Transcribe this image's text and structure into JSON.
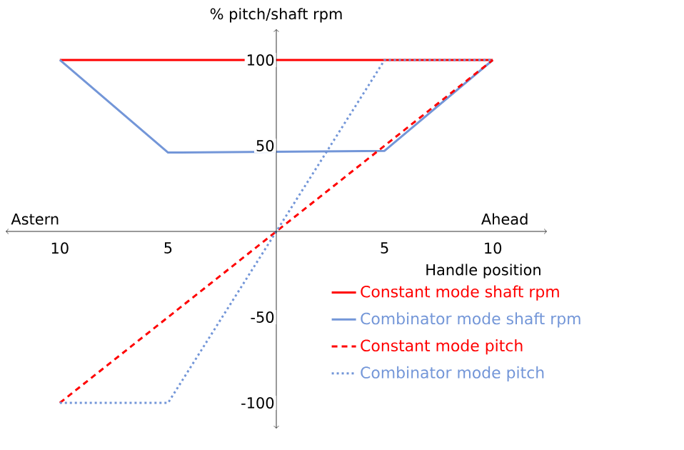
{
  "chart_data": {
    "type": "line",
    "xlabel": "Handle position",
    "ylabel": "% pitch/shaft rpm",
    "annotations": [
      "Astern",
      "Ahead"
    ],
    "xlim": [
      -12.5,
      12.5
    ],
    "ylim": [
      -115,
      118
    ],
    "xticks": [
      {
        "value": -10,
        "label": "10"
      },
      {
        "value": -5,
        "label": "5"
      },
      {
        "value": 5,
        "label": "5"
      },
      {
        "value": 10,
        "label": "10"
      }
    ],
    "yticks": [
      -100,
      -50,
      50,
      100
    ],
    "grid": false,
    "legend": "bottom right",
    "marker": "none",
    "series": [
      {
        "name": "Constant mode shaft rpm",
        "color": "#ff0000",
        "line_style": "solid",
        "x": [
          -10,
          10
        ],
        "values": [
          100,
          100
        ]
      },
      {
        "name": "Combinator mode shaft rpm",
        "color": "#7396d8",
        "line_style": "solid",
        "x": [
          -10,
          -5,
          5,
          10
        ],
        "values": [
          100,
          46,
          47,
          100
        ]
      },
      {
        "name": "Constant mode pitch",
        "color": "#ff0000",
        "line_style": "dashed",
        "x": [
          -10,
          10
        ],
        "values": [
          -100,
          100
        ]
      },
      {
        "name": "Combinator mode pitch",
        "color": "#7396d8",
        "line_style": "dotted",
        "x": [
          -10,
          -5,
          5,
          10
        ],
        "values": [
          -100,
          -100,
          100,
          100
        ]
      }
    ]
  }
}
